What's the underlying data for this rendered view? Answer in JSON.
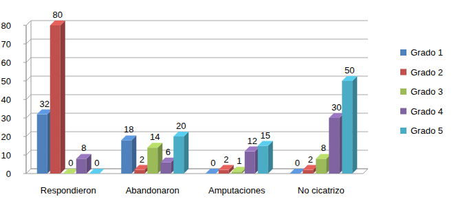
{
  "chart_data": {
    "type": "bar",
    "categories": [
      "Respondieron",
      "Abandonaron",
      "Amputaciones",
      "No cicatrizo"
    ],
    "series": [
      {
        "name": "Grado 1",
        "color": "#4f81bd",
        "values": [
          32,
          18,
          0,
          0
        ]
      },
      {
        "name": "Grado 2",
        "color": "#c0504d",
        "values": [
          80,
          2,
          2,
          2
        ]
      },
      {
        "name": "Grado 3",
        "color": "#9bbb59",
        "values": [
          0,
          14,
          1,
          8
        ]
      },
      {
        "name": "Grado 4",
        "color": "#8064a2",
        "values": [
          8,
          6,
          12,
          30
        ]
      },
      {
        "name": "Grado 5",
        "color": "#4bacc6",
        "values": [
          0,
          20,
          15,
          50
        ]
      }
    ],
    "ylim": [
      0,
      80
    ],
    "yticks": [
      0,
      10,
      20,
      30,
      40,
      50,
      60,
      70,
      80
    ],
    "grid": true,
    "legend": "right",
    "data_labels": true
  }
}
